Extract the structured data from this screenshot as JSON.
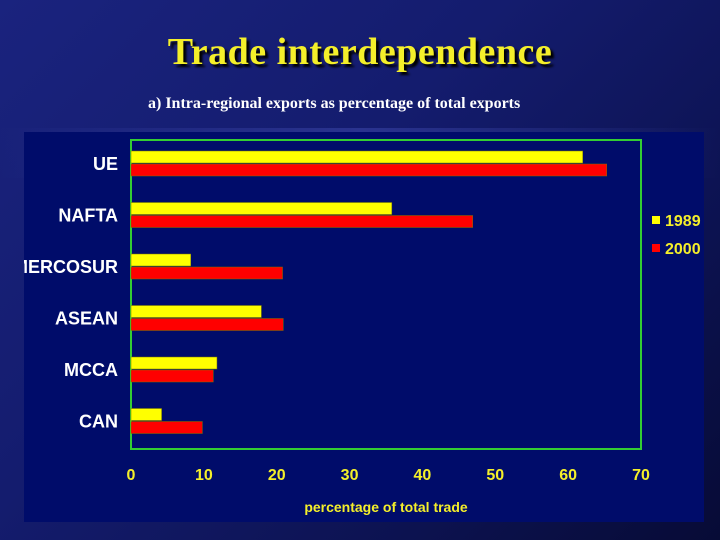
{
  "slide": {
    "title": "Trade interdependence",
    "subtitle": "a) Intra-regional exports as percentage of total exports"
  },
  "colors": {
    "series_1989": "#ffff00",
    "series_2000": "#ff0000",
    "frame": "#33cc33",
    "text_yellow": "#f4ef2a",
    "panel": "#000c6a"
  },
  "chart_data": {
    "type": "bar",
    "orientation": "horizontal",
    "categories": [
      "UE",
      "NAFTA",
      "MERCOSUR",
      "ASEAN",
      "MCCA",
      "CAN"
    ],
    "series": [
      {
        "name": "1989",
        "values": [
          62,
          35.8,
          8.2,
          17.9,
          11.8,
          4.2
        ]
      },
      {
        "name": "2000",
        "values": [
          65.3,
          46.9,
          20.8,
          20.9,
          11.3,
          9.8
        ]
      }
    ],
    "xlabel": "percentage of total trade",
    "xlim": [
      0,
      70
    ],
    "xticks": [
      0,
      10,
      20,
      30,
      40,
      50,
      60,
      70
    ],
    "grid": false,
    "legend": "right"
  }
}
